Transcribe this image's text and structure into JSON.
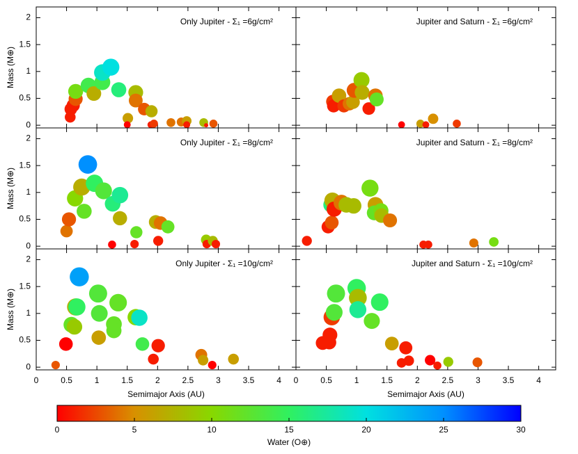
{
  "chart_data": {
    "type": "scatter",
    "x_label": "Semimajor Axis (AU)",
    "y_label": "Mass (M⊕)",
    "xlim": [
      0,
      4.28
    ],
    "xticks": [
      0,
      0.5,
      1,
      1.5,
      2,
      2.5,
      3,
      3.5,
      4
    ],
    "ylim": [
      -0.05,
      2.2
    ],
    "yticks": [
      0,
      0.5,
      1,
      1.5,
      2
    ],
    "colormap": [
      "#ff0000",
      "#d89000",
      "#88d800",
      "#30f060",
      "#00e0e0",
      "#0090ff",
      "#0000ff"
    ],
    "colorbar": {
      "label": "Water (O⊕)",
      "lim": [
        0,
        30
      ],
      "ticks": [
        0,
        5,
        10,
        15,
        20,
        25,
        30
      ]
    },
    "panels": [
      {
        "title": "Only Jupiter - Σ₁ =6g/cm²",
        "x": [
          0.56,
          0.57,
          0.61,
          0.65,
          0.65,
          0.86,
          0.95,
          1.09,
          1.09,
          1.23,
          1.36,
          1.64,
          1.64,
          1.51,
          1.5,
          1.78,
          1.9,
          1.89,
          1.94,
          2.22,
          2.39,
          2.48,
          2.48,
          2.76,
          2.8,
          2.92
        ],
        "values": [
          0.15,
          0.3,
          0.37,
          0.49,
          0.63,
          0.74,
          0.59,
          0.8,
          0.98,
          1.08,
          0.66,
          0.61,
          0.46,
          0.13,
          0.01,
          0.3,
          0.26,
          0.01,
          0.03,
          0.05,
          0.06,
          0.08,
          0.01,
          0.05,
          0,
          0.03
        ],
        "water": [
          1,
          1,
          1,
          3,
          11,
          14,
          7,
          14,
          19,
          20,
          16,
          8,
          4,
          6,
          0,
          3,
          7,
          1,
          2,
          4,
          4,
          6,
          1,
          8,
          1,
          3
        ]
      },
      {
        "title": "Jupiter and Saturn - Σ₁ =6g/cm²",
        "x": [
          0.61,
          0.62,
          0.71,
          0.79,
          0.88,
          0.94,
          0.96,
          1.08,
          1.09,
          1.2,
          1.31,
          1.33,
          1.74,
          2.05,
          2.14,
          2.26,
          2.65
        ],
        "values": [
          0.44,
          0.36,
          0.55,
          0.36,
          0.4,
          0.43,
          0.65,
          0.84,
          0.61,
          0.31,
          0.55,
          0.48,
          0.01,
          0.03,
          0.01,
          0.12,
          0.03
        ],
        "water": [
          2,
          1,
          6,
          2,
          4,
          6,
          3,
          9,
          7,
          1,
          4,
          12,
          0,
          6,
          1,
          5,
          2
        ]
      },
      {
        "title": "Only Jupiter - Σ₁ =8g/cm²",
        "x": [
          0.5,
          0.54,
          0.64,
          0.75,
          0.79,
          0.85,
          0.96,
          1.11,
          1.26,
          1.38,
          1.38,
          1.25,
          1.62,
          1.65,
          1.97,
          2.05,
          2.17,
          2.01,
          2.8,
          2.81,
          2.91,
          2.96
        ],
        "values": [
          0.28,
          0.5,
          0.89,
          1.1,
          0.65,
          1.52,
          1.17,
          1.03,
          0.79,
          0.95,
          0.52,
          0.03,
          0.04,
          0.26,
          0.45,
          0.43,
          0.36,
          0.1,
          0.12,
          0.04,
          0.1,
          0.04
        ],
        "water": [
          4,
          3,
          10,
          7,
          12,
          25,
          15,
          13,
          16,
          17,
          7,
          0,
          1,
          12,
          7,
          4,
          12,
          1,
          9,
          1,
          8,
          1
        ]
      },
      {
        "title": "Jupiter and Saturn - Σ₁ =8g/cm²",
        "x": [
          0.18,
          0.53,
          0.59,
          0.58,
          0.6,
          0.63,
          0.75,
          0.83,
          0.95,
          1.22,
          1.31,
          1.29,
          1.4,
          1.41,
          1.55,
          2.1,
          2.18,
          2.93,
          3.26
        ],
        "values": [
          0.1,
          0.36,
          0.44,
          0.77,
          0.85,
          0.69,
          0.81,
          0.77,
          0.75,
          1.08,
          0.77,
          0.62,
          0.66,
          0.57,
          0.48,
          0.03,
          0.03,
          0.06,
          0.08
        ],
        "water": [
          1,
          1,
          3,
          16,
          7,
          1,
          4,
          8,
          8,
          11,
          6,
          12,
          11,
          8,
          4,
          1,
          1,
          4,
          11
        ]
      },
      {
        "title": "Only Jupiter - Σ₁ =10g/cm²",
        "x": [
          0.32,
          0.49,
          0.58,
          0.63,
          0.65,
          0.67,
          0.71,
          1.02,
          1.04,
          1.03,
          1.28,
          1.28,
          1.35,
          1.64,
          1.7,
          1.75,
          2.01,
          1.93,
          2.72,
          2.75,
          2.9,
          3.25
        ],
        "values": [
          0.04,
          0.43,
          0.79,
          0.75,
          1.12,
          1.12,
          1.68,
          1.37,
          1.0,
          0.55,
          0.8,
          0.68,
          1.2,
          0.93,
          0.92,
          0.43,
          0.4,
          0.15,
          0.23,
          0.13,
          0.04,
          0.15
        ],
        "water": [
          3,
          0,
          12,
          9,
          7,
          15,
          24,
          13,
          13,
          6,
          12,
          12,
          12,
          10,
          19,
          14,
          1,
          1,
          4,
          6,
          0,
          6
        ]
      },
      {
        "title": "Jupiter and Saturn - Σ₁ =10g/cm²",
        "x": [
          0.44,
          0.55,
          0.56,
          0.59,
          0.66,
          0.63,
          1.0,
          1.02,
          1.02,
          1.25,
          1.38,
          1.58,
          1.81,
          1.74,
          1.86,
          2.21,
          2.33,
          2.51,
          2.99
        ],
        "values": [
          0.45,
          0.46,
          0.6,
          0.93,
          1.37,
          1.02,
          1.47,
          1.29,
          1.07,
          0.86,
          1.21,
          0.44,
          0.36,
          0.08,
          0.12,
          0.13,
          0.03,
          0.1,
          0.09
        ],
        "water": [
          1,
          1,
          1,
          2,
          13,
          13,
          15,
          8,
          17,
          12,
          15,
          6,
          1,
          1,
          1,
          0,
          1,
          9,
          3
        ]
      }
    ]
  }
}
